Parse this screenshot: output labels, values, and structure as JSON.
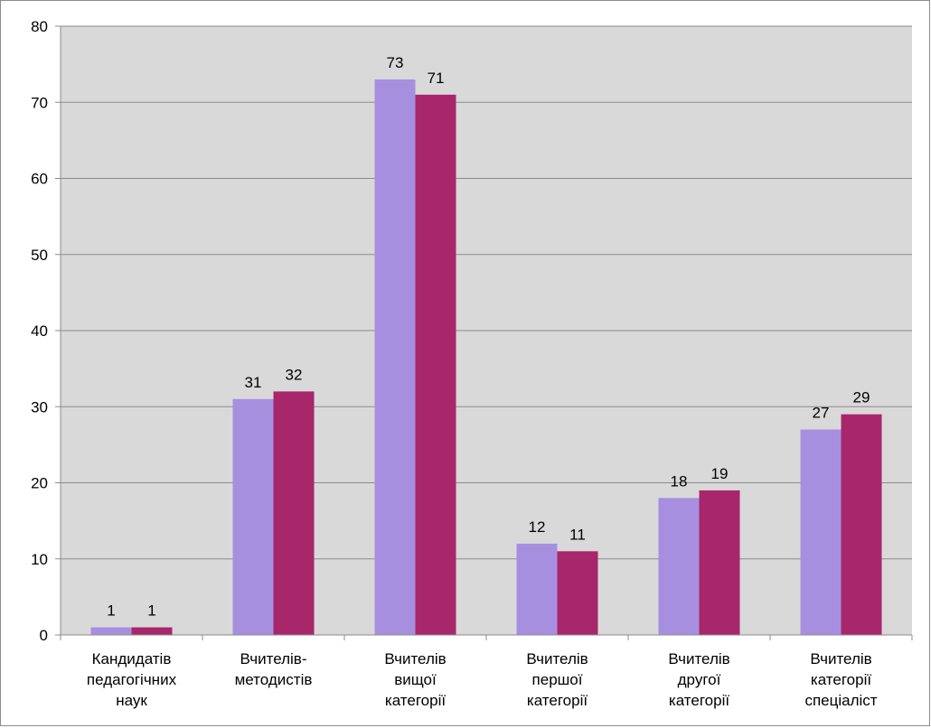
{
  "chart_data": {
    "type": "bar",
    "title": "",
    "xlabel": "",
    "ylabel": "",
    "ylim": [
      0,
      80
    ],
    "yticks": [
      "0",
      "10",
      "20",
      "30",
      "40",
      "50",
      "60",
      "70",
      "80"
    ],
    "grid": true,
    "legend": "none",
    "categories": [
      [
        "Кандидатів",
        "педагогічних",
        "наук"
      ],
      [
        "Вчителів-",
        "методистів"
      ],
      [
        "Вчителів",
        "вищої",
        "категорії"
      ],
      [
        "Вчителів",
        "першої",
        "категорії"
      ],
      [
        "Вчителів",
        "другої",
        "категорії"
      ],
      [
        "Вчителів",
        "категорії",
        "спеціаліст"
      ]
    ],
    "series": [
      {
        "values": [
          1,
          31,
          73,
          12,
          18,
          27
        ],
        "color": "#a78fe0"
      },
      {
        "values": [
          1,
          32,
          71,
          11,
          19,
          29
        ],
        "color": "#a8266a"
      }
    ],
    "plot_background": "#d9d9d9",
    "gridline_color": "#8c8c8c"
  }
}
